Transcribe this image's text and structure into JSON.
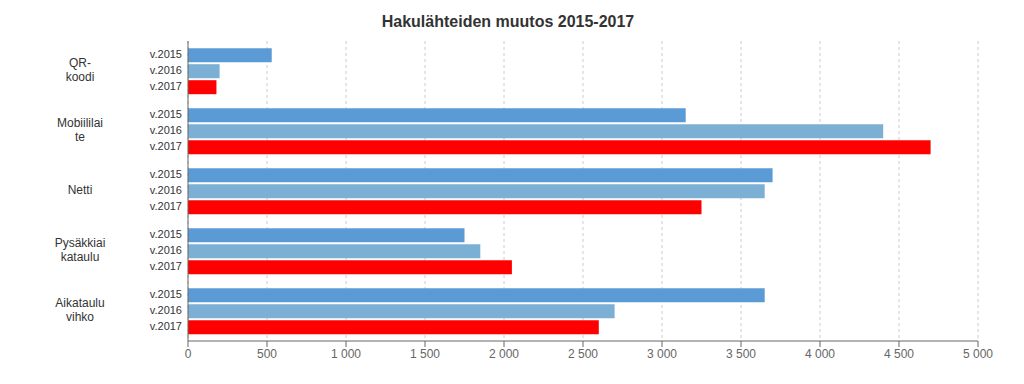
{
  "chart_data": {
    "type": "bar",
    "title": "Hakulähteiden muutos 2015-2017",
    "orientation": "horizontal",
    "categories": [
      "QR-\nkoodi",
      "Mobiililai\nte",
      "Netti",
      "Pysäkkiai\nkataulu",
      "Aikataulu\nvihko"
    ],
    "series": [
      {
        "name": "v.2015",
        "color": "#5b9bd5",
        "values": [
          530,
          3150,
          3700,
          1750,
          3650
        ]
      },
      {
        "name": "v.2016",
        "color": "#7bafd4",
        "values": [
          200,
          4400,
          3650,
          1850,
          2700
        ]
      },
      {
        "name": "v.2017",
        "color": "#ff0000",
        "values": [
          180,
          4700,
          3250,
          2050,
          2600
        ]
      }
    ],
    "xlim": [
      0,
      5000
    ],
    "xticks": [
      0,
      500,
      {
        "value": 1000,
        "label": "1 000"
      },
      {
        "value": 1500,
        "label": "1 500"
      },
      {
        "value": 2000,
        "label": "2 000"
      },
      {
        "value": 2500,
        "label": "2 500"
      },
      {
        "value": 3000,
        "label": "3 000"
      },
      {
        "value": 3500,
        "label": "3 500"
      },
      {
        "value": 4000,
        "label": "4 000"
      },
      {
        "value": 4500,
        "label": "4 500"
      },
      {
        "value": 5000,
        "label": "5 000"
      }
    ],
    "grid": true
  }
}
